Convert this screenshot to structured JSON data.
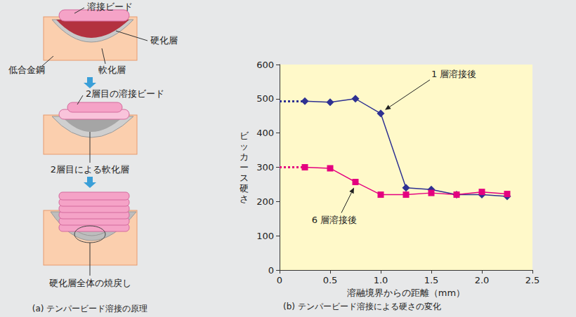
{
  "chart_data": {
    "type": "line",
    "title": "(b) テンパービード溶接による硬さの変化",
    "x_label": "溶融境界からの距離（mm）",
    "y_label": "ビッカース硬さ",
    "x": [
      0.25,
      0.5,
      0.75,
      1.0,
      1.25,
      1.5,
      1.75,
      2.0,
      2.25
    ],
    "series": [
      {
        "name": "1 層溶接後",
        "color": "#2e3192",
        "marker": "diamond",
        "values": [
          493,
          490,
          500,
          457,
          240,
          235,
          220,
          220,
          215
        ]
      },
      {
        "name": "6 層溶接後",
        "color": "#e4007f",
        "marker": "square",
        "values": [
          300,
          297,
          257,
          220,
          220,
          225,
          220,
          228,
          222
        ]
      }
    ],
    "annotations": [
      {
        "text": "1 層溶接後",
        "x": 1.0,
        "y": 457
      },
      {
        "text": "6 層溶接後",
        "x": 0.75,
        "y": 257
      }
    ],
    "xlim": [
      0,
      2.5
    ],
    "xticks": [
      0,
      0.5,
      {
        "value": 1,
        "label": "1.0"
      },
      1.5,
      {
        "value": 2,
        "label": "2.0"
      },
      2.5
    ],
    "ylim": [
      0,
      600
    ],
    "yticks": [
      0,
      100,
      200,
      300,
      400,
      500,
      600
    ],
    "grid": false
  },
  "diagram": {
    "caption": "(a) テンパービード溶接の原理",
    "step1": {
      "bead": "溶接ビード",
      "hardened": "硬化層",
      "softened": "軟化層",
      "base": "低合金鋼"
    },
    "step2": {
      "bead": "2層目の溶接ビード",
      "softened": "2層目による軟化層"
    },
    "step3": {
      "result": "硬化層全体の焼戻し"
    }
  }
}
